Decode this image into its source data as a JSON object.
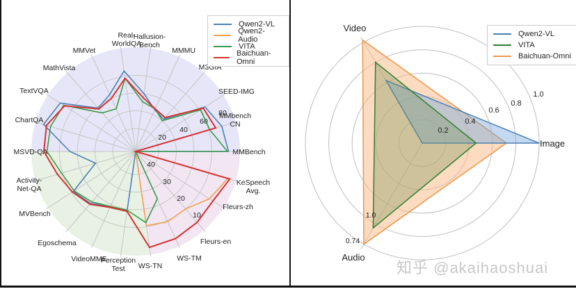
{
  "chart_data": [
    {
      "type": "radar",
      "title": "",
      "legend_position": "upper right",
      "grid": true,
      "axes": [
        "MMBench",
        "MMbench CN",
        "SEED-IMG",
        "M3GIA",
        "MMMU",
        "Hallusion-Bench",
        "Real-WorldQA",
        "MMVet",
        "MathVista",
        "TextVQA",
        "ChartQA",
        "MSVD-QA",
        "Activity-Net-QA",
        "MVBench",
        "Egoschema",
        "VideoMME",
        "Perception Test",
        "WS-TN",
        "WS-TM",
        "Fleurs-en",
        "Fleurs-zh",
        "KeSpeech Avg."
      ],
      "axis_label_lines": [
        [
          "MMBench"
        ],
        [
          "MMbench",
          "CN"
        ],
        [
          "SEED-IMG"
        ],
        [
          "M3GIA"
        ],
        [
          "MMMU"
        ],
        [
          "Hallusion-",
          "Bench"
        ],
        [
          "Real-",
          "WorldQA"
        ],
        [
          "MMVet"
        ],
        [
          "MathVista"
        ],
        [
          "TextVQA"
        ],
        [
          "ChartQA"
        ],
        [
          "MSVD-QA"
        ],
        [
          "Activity-",
          "Net-QA"
        ],
        [
          "MVBench"
        ],
        [
          "Egoschema"
        ],
        [
          "VideoMME"
        ],
        [
          "Perception",
          "Test"
        ],
        [
          "WS-TN"
        ],
        [
          "WS-TM"
        ],
        [
          "Fleurs-en"
        ],
        [
          "Fleurs-zh"
        ],
        [
          "KeSpeech",
          "Avg."
        ]
      ],
      "regions": [
        {
          "name": "image",
          "color": "#e6e6f8",
          "from_axis": 0,
          "to_axis": 11
        },
        {
          "name": "video",
          "color": "#e8f1e4",
          "from_axis": 11,
          "to_axis": 17
        },
        {
          "name": "audio",
          "color": "#f2e6f2",
          "from_axis": 17,
          "to_axis": 22
        }
      ],
      "image_tick_labels": [
        "20",
        "40",
        "60",
        "80"
      ],
      "audio_tick_labels": [
        "40",
        "30",
        "20",
        "10"
      ],
      "series": [
        {
          "name": "Qwen2-VL",
          "color": "#4a7fb5",
          "values": [
            0.89,
            0.86,
            0.79,
            0.41,
            0.44,
            0.56,
            0.78,
            0.6,
            0.55,
            0.86,
            0.92,
            0.63,
            0.4,
            0.71,
            0.66,
            0.58,
            0.58,
            0.0,
            0.0,
            0.0,
            0.0,
            0.0
          ]
        },
        {
          "name": "Qwen2-Audio",
          "color": "#f0a050",
          "values": [
            0.0,
            0.0,
            0.0,
            0.0,
            0.0,
            0.0,
            0.0,
            0.0,
            0.0,
            0.0,
            0.0,
            0.0,
            0.0,
            0.0,
            0.0,
            0.0,
            0.0,
            0.72,
            0.74,
            0.73,
            0.84,
            0.92
          ]
        },
        {
          "name": "VITA",
          "color": "#3a9a48",
          "values": [
            0.88,
            0.74,
            0.74,
            0.39,
            0.45,
            0.48,
            0.71,
            0.45,
            0.49,
            0.82,
            0.85,
            0.85,
            0.74,
            0.7,
            0.64,
            0.58,
            0.57,
            0.69,
            0.5,
            0.0,
            0.0,
            0.0
          ]
        },
        {
          "name": "Baichuan-Omni",
          "color": "#d63030",
          "values": [
            0.0,
            0.8,
            0.77,
            0.43,
            0.45,
            0.52,
            0.71,
            0.56,
            0.54,
            0.81,
            0.89,
            0.88,
            0.78,
            0.72,
            0.67,
            0.59,
            0.58,
            0.93,
            0.92,
            0.9,
            0.88,
            0.94
          ]
        }
      ]
    },
    {
      "type": "radar",
      "title": "",
      "legend_position": "upper right",
      "grid": true,
      "axes": [
        "Image",
        "Video",
        "Audio"
      ],
      "radial_ticks": [
        "0.2",
        "0.4",
        "0.6",
        "0.8",
        "1.0"
      ],
      "annotations": [
        {
          "text": "1.0",
          "near": "VITA Audio vertex"
        },
        {
          "text": "0.74",
          "near": "Baichuan-Omni Audio vertex"
        }
      ],
      "series": [
        {
          "name": "Qwen2-VL",
          "color": "#4a7fb5",
          "fill": "rgba(120,170,225,0.45)",
          "values": [
            1.0,
            0.62,
            0.0
          ]
        },
        {
          "name": "VITA",
          "color": "#2f7d32",
          "fill": "rgba(120,150,90,0.35)",
          "values": [
            0.46,
            0.8,
            0.84
          ]
        },
        {
          "name": "Baichuan-Omni",
          "color": "#e8964a",
          "fill": "rgba(250,190,140,0.55)",
          "values": [
            0.72,
            1.02,
            1.0
          ]
        }
      ]
    }
  ],
  "left_legend": [
    "Qwen2-VL",
    "Qwen2-Audio",
    "VITA",
    "Baichuan-Omni"
  ],
  "right_legend": [
    "Qwen2-VL",
    "VITA",
    "Baichuan-Omni"
  ],
  "watermark": "知乎 @akaihaoshuai"
}
